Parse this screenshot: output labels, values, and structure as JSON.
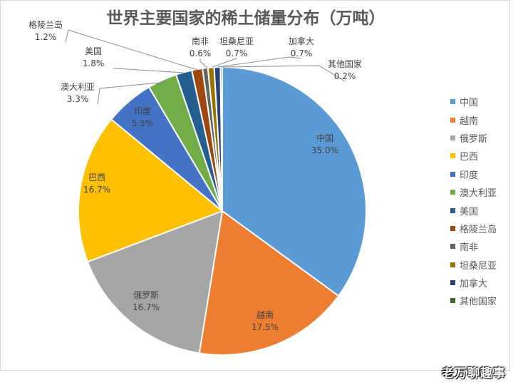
{
  "chart_data": {
    "type": "pie",
    "title": "世界主要国家的稀土储量分布（万吨）",
    "categories": [
      "中国",
      "越南",
      "俄罗斯",
      "巴西",
      "印度",
      "澳大利亚",
      "美国",
      "格陵兰岛",
      "南非",
      "坦桑尼亚",
      "加拿大",
      "其他国家"
    ],
    "values": [
      35.0,
      17.5,
      16.7,
      16.7,
      5.5,
      3.3,
      1.8,
      1.2,
      0.6,
      0.7,
      0.7,
      0.2
    ],
    "value_labels": [
      "35.0%",
      "17.5%",
      "16.7%",
      "16.7%",
      "5.5%",
      "3.3%",
      "1.8%",
      "1.2%",
      "0.6%",
      "0.7%",
      "0.7%",
      "0.2%"
    ],
    "colors": [
      "#5b9bd5",
      "#ed7d31",
      "#a5a5a5",
      "#ffc000",
      "#4472c4",
      "#70ad47",
      "#255e91",
      "#9e480e",
      "#636363",
      "#997300",
      "#264478",
      "#43682b"
    ],
    "legend_position": "right",
    "start_angle_deg": 0,
    "direction": "clockwise"
  },
  "watermark": "老万聊趣事"
}
